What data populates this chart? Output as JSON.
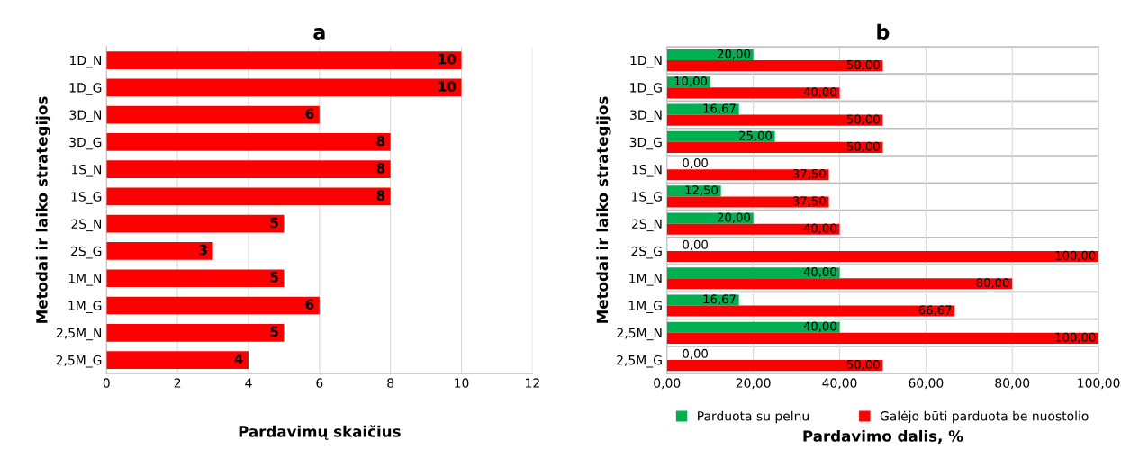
{
  "chart_data": [
    {
      "type": "bar",
      "orientation": "horizontal",
      "title": "a",
      "xlabel": "Pardavimų skaičius",
      "ylabel": "Metodai ir laiko strategijos",
      "categories": [
        "1D_N",
        "1D_G",
        "3D_N",
        "3D_G",
        "1S_N",
        "1S_G",
        "2S_N",
        "2S_G",
        "1M_N",
        "1M_G",
        "2,5M_N",
        "2,5M_G"
      ],
      "values": [
        10,
        10,
        6,
        8,
        8,
        8,
        5,
        3,
        5,
        6,
        5,
        4
      ],
      "color": "#ff0000",
      "xlim": [
        0,
        12
      ],
      "xticks": [
        0,
        2,
        4,
        6,
        8,
        10,
        12
      ],
      "grid": "x",
      "data_labels": true
    },
    {
      "type": "bar",
      "orientation": "horizontal",
      "title": "b",
      "xlabel": "Pardavimo dalis, %",
      "ylabel": "Metodai ir laiko strategijos",
      "categories": [
        "1D_N",
        "1D_G",
        "3D_N",
        "3D_G",
        "1S_N",
        "1S_G",
        "2S_N",
        "2S_G",
        "1M_N",
        "1M_G",
        "2,5M_N",
        "2,5M_G"
      ],
      "series": [
        {
          "name": "Parduota su pelnu",
          "color": "#00b050",
          "values": [
            20.0,
            10.0,
            16.67,
            25.0,
            0.0,
            12.5,
            20.0,
            0.0,
            40.0,
            16.67,
            40.0,
            0.0
          ],
          "value_labels": [
            "20,00",
            "10,00",
            "16,67",
            "25,00",
            "0,00",
            "12,50",
            "20,00",
            "0,00",
            "40,00",
            "16,67",
            "40,00",
            "0,00"
          ]
        },
        {
          "name": "Galėjo būti parduota be nuostolio",
          "color": "#ff0000",
          "values": [
            50.0,
            40.0,
            50.0,
            50.0,
            37.5,
            37.5,
            40.0,
            100.0,
            80.0,
            66.67,
            100.0,
            50.0
          ],
          "value_labels": [
            "50,00",
            "40,00",
            "50,00",
            "50,00",
            "37,50",
            "37,50",
            "40,00",
            "100,00",
            "80,00",
            "66,67",
            "100,00",
            "50,00"
          ]
        }
      ],
      "xlim": [
        0,
        100
      ],
      "xticks": [
        {
          "value": 0,
          "label": "0,00"
        },
        {
          "value": 20,
          "label": "20,00"
        },
        {
          "value": 40,
          "label": "40,00"
        },
        {
          "value": 60,
          "label": "60,00"
        },
        {
          "value": 80,
          "label": "80,00"
        },
        {
          "value": 100,
          "label": "100,00"
        }
      ],
      "grid": true,
      "legend": "bottom"
    }
  ]
}
